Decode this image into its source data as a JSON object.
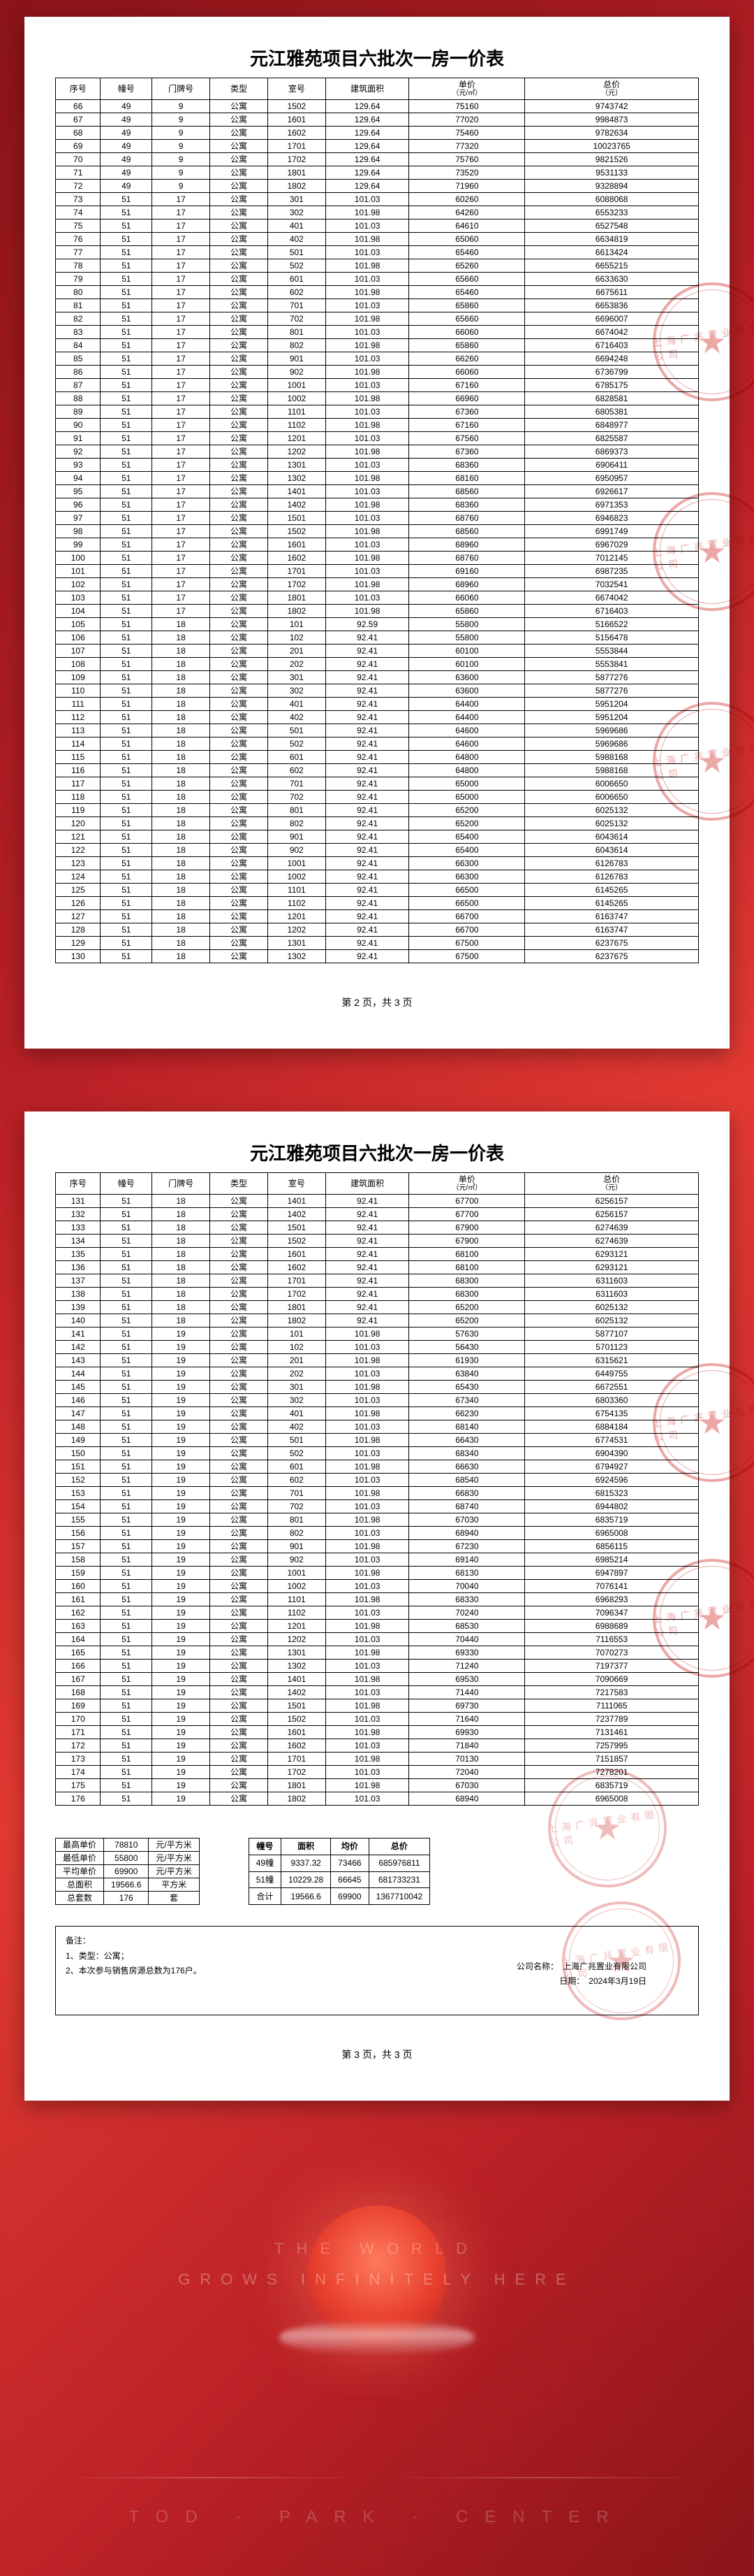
{
  "title": "元江雅苑项目六批次一房一价表",
  "headers_top": [
    "序号",
    "幢号",
    "门牌号",
    "类型",
    "室号",
    "建筑面积",
    "单价",
    "总价"
  ],
  "headers_sub": [
    "",
    "",
    "",
    "",
    "",
    "",
    "（元/㎡）",
    "（元）"
  ],
  "page2": {
    "rows": [
      [
        "66",
        "49",
        "9",
        "公寓",
        "1502",
        "129.64",
        "75160",
        "9743742"
      ],
      [
        "67",
        "49",
        "9",
        "公寓",
        "1601",
        "129.64",
        "77020",
        "9984873"
      ],
      [
        "68",
        "49",
        "9",
        "公寓",
        "1602",
        "129.64",
        "75460",
        "9782634"
      ],
      [
        "69",
        "49",
        "9",
        "公寓",
        "1701",
        "129.64",
        "77320",
        "10023765"
      ],
      [
        "70",
        "49",
        "9",
        "公寓",
        "1702",
        "129.64",
        "75760",
        "9821526"
      ],
      [
        "71",
        "49",
        "9",
        "公寓",
        "1801",
        "129.64",
        "73520",
        "9531133"
      ],
      [
        "72",
        "49",
        "9",
        "公寓",
        "1802",
        "129.64",
        "71960",
        "9328894"
      ],
      [
        "73",
        "51",
        "17",
        "公寓",
        "301",
        "101.03",
        "60260",
        "6088068"
      ],
      [
        "74",
        "51",
        "17",
        "公寓",
        "302",
        "101.98",
        "64260",
        "6553233"
      ],
      [
        "75",
        "51",
        "17",
        "公寓",
        "401",
        "101.03",
        "64610",
        "6527548"
      ],
      [
        "76",
        "51",
        "17",
        "公寓",
        "402",
        "101.98",
        "65060",
        "6634819"
      ],
      [
        "77",
        "51",
        "17",
        "公寓",
        "501",
        "101.03",
        "65460",
        "6613424"
      ],
      [
        "78",
        "51",
        "17",
        "公寓",
        "502",
        "101.98",
        "65260",
        "6655215"
      ],
      [
        "79",
        "51",
        "17",
        "公寓",
        "601",
        "101.03",
        "65660",
        "6633630"
      ],
      [
        "80",
        "51",
        "17",
        "公寓",
        "602",
        "101.98",
        "65460",
        "6675611"
      ],
      [
        "81",
        "51",
        "17",
        "公寓",
        "701",
        "101.03",
        "65860",
        "6653836"
      ],
      [
        "82",
        "51",
        "17",
        "公寓",
        "702",
        "101.98",
        "65660",
        "6696007"
      ],
      [
        "83",
        "51",
        "17",
        "公寓",
        "801",
        "101.03",
        "66060",
        "6674042"
      ],
      [
        "84",
        "51",
        "17",
        "公寓",
        "802",
        "101.98",
        "65860",
        "6716403"
      ],
      [
        "85",
        "51",
        "17",
        "公寓",
        "901",
        "101.03",
        "66260",
        "6694248"
      ],
      [
        "86",
        "51",
        "17",
        "公寓",
        "902",
        "101.98",
        "66060",
        "6736799"
      ],
      [
        "87",
        "51",
        "17",
        "公寓",
        "1001",
        "101.03",
        "67160",
        "6785175"
      ],
      [
        "88",
        "51",
        "17",
        "公寓",
        "1002",
        "101.98",
        "66960",
        "6828581"
      ],
      [
        "89",
        "51",
        "17",
        "公寓",
        "1101",
        "101.03",
        "67360",
        "6805381"
      ],
      [
        "90",
        "51",
        "17",
        "公寓",
        "1102",
        "101.98",
        "67160",
        "6848977"
      ],
      [
        "91",
        "51",
        "17",
        "公寓",
        "1201",
        "101.03",
        "67560",
        "6825587"
      ],
      [
        "92",
        "51",
        "17",
        "公寓",
        "1202",
        "101.98",
        "67360",
        "6869373"
      ],
      [
        "93",
        "51",
        "17",
        "公寓",
        "1301",
        "101.03",
        "68360",
        "6906411"
      ],
      [
        "94",
        "51",
        "17",
        "公寓",
        "1302",
        "101.98",
        "68160",
        "6950957"
      ],
      [
        "95",
        "51",
        "17",
        "公寓",
        "1401",
        "101.03",
        "68560",
        "6926617"
      ],
      [
        "96",
        "51",
        "17",
        "公寓",
        "1402",
        "101.98",
        "68360",
        "6971353"
      ],
      [
        "97",
        "51",
        "17",
        "公寓",
        "1501",
        "101.03",
        "68760",
        "6946823"
      ],
      [
        "98",
        "51",
        "17",
        "公寓",
        "1502",
        "101.98",
        "68560",
        "6991749"
      ],
      [
        "99",
        "51",
        "17",
        "公寓",
        "1601",
        "101.03",
        "68960",
        "6967029"
      ],
      [
        "100",
        "51",
        "17",
        "公寓",
        "1602",
        "101.98",
        "68760",
        "7012145"
      ],
      [
        "101",
        "51",
        "17",
        "公寓",
        "1701",
        "101.03",
        "69160",
        "6987235"
      ],
      [
        "102",
        "51",
        "17",
        "公寓",
        "1702",
        "101.98",
        "68960",
        "7032541"
      ],
      [
        "103",
        "51",
        "17",
        "公寓",
        "1801",
        "101.03",
        "66060",
        "6674042"
      ],
      [
        "104",
        "51",
        "17",
        "公寓",
        "1802",
        "101.98",
        "65860",
        "6716403"
      ],
      [
        "105",
        "51",
        "18",
        "公寓",
        "101",
        "92.59",
        "55800",
        "5166522"
      ],
      [
        "106",
        "51",
        "18",
        "公寓",
        "102",
        "92.41",
        "55800",
        "5156478"
      ],
      [
        "107",
        "51",
        "18",
        "公寓",
        "201",
        "92.41",
        "60100",
        "5553844"
      ],
      [
        "108",
        "51",
        "18",
        "公寓",
        "202",
        "92.41",
        "60100",
        "5553841"
      ],
      [
        "109",
        "51",
        "18",
        "公寓",
        "301",
        "92.41",
        "63600",
        "5877276"
      ],
      [
        "110",
        "51",
        "18",
        "公寓",
        "302",
        "92.41",
        "63600",
        "5877276"
      ],
      [
        "111",
        "51",
        "18",
        "公寓",
        "401",
        "92.41",
        "64400",
        "5951204"
      ],
      [
        "112",
        "51",
        "18",
        "公寓",
        "402",
        "92.41",
        "64400",
        "5951204"
      ],
      [
        "113",
        "51",
        "18",
        "公寓",
        "501",
        "92.41",
        "64600",
        "5969686"
      ],
      [
        "114",
        "51",
        "18",
        "公寓",
        "502",
        "92.41",
        "64600",
        "5969686"
      ],
      [
        "115",
        "51",
        "18",
        "公寓",
        "601",
        "92.41",
        "64800",
        "5988168"
      ],
      [
        "116",
        "51",
        "18",
        "公寓",
        "602",
        "92.41",
        "64800",
        "5988168"
      ],
      [
        "117",
        "51",
        "18",
        "公寓",
        "701",
        "92.41",
        "65000",
        "6006650"
      ],
      [
        "118",
        "51",
        "18",
        "公寓",
        "702",
        "92.41",
        "65000",
        "6006650"
      ],
      [
        "119",
        "51",
        "18",
        "公寓",
        "801",
        "92.41",
        "65200",
        "6025132"
      ],
      [
        "120",
        "51",
        "18",
        "公寓",
        "802",
        "92.41",
        "65200",
        "6025132"
      ],
      [
        "121",
        "51",
        "18",
        "公寓",
        "901",
        "92.41",
        "65400",
        "6043614"
      ],
      [
        "122",
        "51",
        "18",
        "公寓",
        "902",
        "92.41",
        "65400",
        "6043614"
      ],
      [
        "123",
        "51",
        "18",
        "公寓",
        "1001",
        "92.41",
        "66300",
        "6126783"
      ],
      [
        "124",
        "51",
        "18",
        "公寓",
        "1002",
        "92.41",
        "66300",
        "6126783"
      ],
      [
        "125",
        "51",
        "18",
        "公寓",
        "1101",
        "92.41",
        "66500",
        "6145265"
      ],
      [
        "126",
        "51",
        "18",
        "公寓",
        "1102",
        "92.41",
        "66500",
        "6145265"
      ],
      [
        "127",
        "51",
        "18",
        "公寓",
        "1201",
        "92.41",
        "66700",
        "6163747"
      ],
      [
        "128",
        "51",
        "18",
        "公寓",
        "1202",
        "92.41",
        "66700",
        "6163747"
      ],
      [
        "129",
        "51",
        "18",
        "公寓",
        "1301",
        "92.41",
        "67500",
        "6237675"
      ],
      [
        "130",
        "51",
        "18",
        "公寓",
        "1302",
        "92.41",
        "67500",
        "6237675"
      ]
    ],
    "footer": "第 2 页，共 3 页"
  },
  "page3": {
    "rows": [
      [
        "131",
        "51",
        "18",
        "公寓",
        "1401",
        "92.41",
        "67700",
        "6256157"
      ],
      [
        "132",
        "51",
        "18",
        "公寓",
        "1402",
        "92.41",
        "67700",
        "6256157"
      ],
      [
        "133",
        "51",
        "18",
        "公寓",
        "1501",
        "92.41",
        "67900",
        "6274639"
      ],
      [
        "134",
        "51",
        "18",
        "公寓",
        "1502",
        "92.41",
        "67900",
        "6274639"
      ],
      [
        "135",
        "51",
        "18",
        "公寓",
        "1601",
        "92.41",
        "68100",
        "6293121"
      ],
      [
        "136",
        "51",
        "18",
        "公寓",
        "1602",
        "92.41",
        "68100",
        "6293121"
      ],
      [
        "137",
        "51",
        "18",
        "公寓",
        "1701",
        "92.41",
        "68300",
        "6311603"
      ],
      [
        "138",
        "51",
        "18",
        "公寓",
        "1702",
        "92.41",
        "68300",
        "6311603"
      ],
      [
        "139",
        "51",
        "18",
        "公寓",
        "1801",
        "92.41",
        "65200",
        "6025132"
      ],
      [
        "140",
        "51",
        "18",
        "公寓",
        "1802",
        "92.41",
        "65200",
        "6025132"
      ],
      [
        "141",
        "51",
        "19",
        "公寓",
        "101",
        "101.98",
        "57630",
        "5877107"
      ],
      [
        "142",
        "51",
        "19",
        "公寓",
        "102",
        "101.03",
        "56430",
        "5701123"
      ],
      [
        "143",
        "51",
        "19",
        "公寓",
        "201",
        "101.98",
        "61930",
        "6315621"
      ],
      [
        "144",
        "51",
        "19",
        "公寓",
        "202",
        "101.03",
        "63840",
        "6449755"
      ],
      [
        "145",
        "51",
        "19",
        "公寓",
        "301",
        "101.98",
        "65430",
        "6672551"
      ],
      [
        "146",
        "51",
        "19",
        "公寓",
        "302",
        "101.03",
        "67340",
        "6803360"
      ],
      [
        "147",
        "51",
        "19",
        "公寓",
        "401",
        "101.98",
        "66230",
        "6754135"
      ],
      [
        "148",
        "51",
        "19",
        "公寓",
        "402",
        "101.03",
        "68140",
        "6884184"
      ],
      [
        "149",
        "51",
        "19",
        "公寓",
        "501",
        "101.98",
        "66430",
        "6774531"
      ],
      [
        "150",
        "51",
        "19",
        "公寓",
        "502",
        "101.03",
        "68340",
        "6904390"
      ],
      [
        "151",
        "51",
        "19",
        "公寓",
        "601",
        "101.98",
        "66630",
        "6794927"
      ],
      [
        "152",
        "51",
        "19",
        "公寓",
        "602",
        "101.03",
        "68540",
        "6924596"
      ],
      [
        "153",
        "51",
        "19",
        "公寓",
        "701",
        "101.98",
        "66830",
        "6815323"
      ],
      [
        "154",
        "51",
        "19",
        "公寓",
        "702",
        "101.03",
        "68740",
        "6944802"
      ],
      [
        "155",
        "51",
        "19",
        "公寓",
        "801",
        "101.98",
        "67030",
        "6835719"
      ],
      [
        "156",
        "51",
        "19",
        "公寓",
        "802",
        "101.03",
        "68940",
        "6965008"
      ],
      [
        "157",
        "51",
        "19",
        "公寓",
        "901",
        "101.98",
        "67230",
        "6856115"
      ],
      [
        "158",
        "51",
        "19",
        "公寓",
        "902",
        "101.03",
        "69140",
        "6985214"
      ],
      [
        "159",
        "51",
        "19",
        "公寓",
        "1001",
        "101.98",
        "68130",
        "6947897"
      ],
      [
        "160",
        "51",
        "19",
        "公寓",
        "1002",
        "101.03",
        "70040",
        "7076141"
      ],
      [
        "161",
        "51",
        "19",
        "公寓",
        "1101",
        "101.98",
        "68330",
        "6968293"
      ],
      [
        "162",
        "51",
        "19",
        "公寓",
        "1102",
        "101.03",
        "70240",
        "7096347"
      ],
      [
        "163",
        "51",
        "19",
        "公寓",
        "1201",
        "101.98",
        "68530",
        "6988689"
      ],
      [
        "164",
        "51",
        "19",
        "公寓",
        "1202",
        "101.03",
        "70440",
        "7116553"
      ],
      [
        "165",
        "51",
        "19",
        "公寓",
        "1301",
        "101.98",
        "69330",
        "7070273"
      ],
      [
        "166",
        "51",
        "19",
        "公寓",
        "1302",
        "101.03",
        "71240",
        "7197377"
      ],
      [
        "167",
        "51",
        "19",
        "公寓",
        "1401",
        "101.98",
        "69530",
        "7090669"
      ],
      [
        "168",
        "51",
        "19",
        "公寓",
        "1402",
        "101.03",
        "71440",
        "7217583"
      ],
      [
        "169",
        "51",
        "19",
        "公寓",
        "1501",
        "101.98",
        "69730",
        "7111065"
      ],
      [
        "170",
        "51",
        "19",
        "公寓",
        "1502",
        "101.03",
        "71640",
        "7237789"
      ],
      [
        "171",
        "51",
        "19",
        "公寓",
        "1601",
        "101.98",
        "69930",
        "7131461"
      ],
      [
        "172",
        "51",
        "19",
        "公寓",
        "1602",
        "101.03",
        "71840",
        "7257995"
      ],
      [
        "173",
        "51",
        "19",
        "公寓",
        "1701",
        "101.98",
        "70130",
        "7151857"
      ],
      [
        "174",
        "51",
        "19",
        "公寓",
        "1702",
        "101.03",
        "72040",
        "7278201"
      ],
      [
        "175",
        "51",
        "19",
        "公寓",
        "1801",
        "101.98",
        "67030",
        "6835719"
      ],
      [
        "176",
        "51",
        "19",
        "公寓",
        "1802",
        "101.03",
        "68940",
        "6965008"
      ]
    ],
    "footer": "第 3 页，共 3 页"
  },
  "summary_left": [
    [
      "最高单价",
      "78810",
      "元/平方米"
    ],
    [
      "最低单价",
      "55800",
      "元/平方米"
    ],
    [
      "平均单价",
      "69900",
      "元/平方米"
    ],
    [
      "总面积",
      "19566.6",
      "平方米"
    ],
    [
      "总套数",
      "176",
      "套"
    ]
  ],
  "summary_right": {
    "head": [
      "幢号",
      "面积",
      "均价",
      "总价"
    ],
    "rows": [
      [
        "49幢",
        "9337.32",
        "73466",
        "685976811"
      ],
      [
        "51幢",
        "10229.28",
        "66645",
        "681733231"
      ],
      [
        "合计",
        "19566.6",
        "69900",
        "1367710042"
      ]
    ]
  },
  "notes": {
    "title": "备注：",
    "l1": "1、类型：公寓；",
    "l2": "2、本次参与销售房源总数为176户。"
  },
  "sign": {
    "l1": "公司名称：　上海广兆置业有限公司",
    "l2": "日期：　2024年3月19日"
  },
  "seal_text": "上海广兆置业有限公司",
  "tagline": {
    "l1": "THE  WORLD",
    "l2": "GROWS INFINITELY HERE"
  },
  "bottombar": "TOD  ·  PARK  ·  CENTER"
}
